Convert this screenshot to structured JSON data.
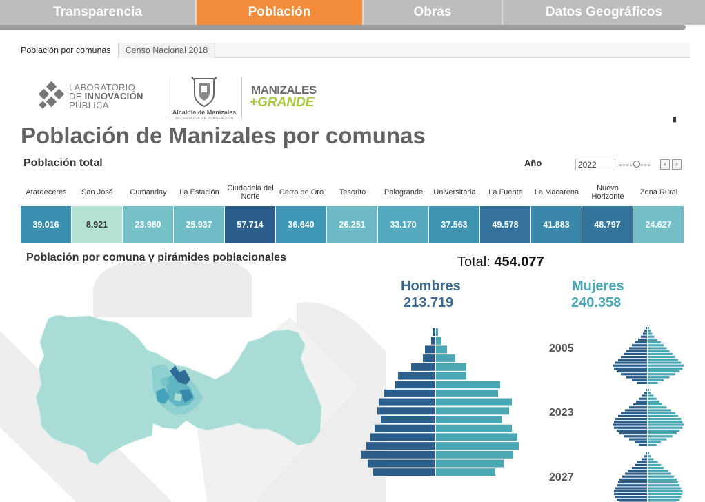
{
  "nav": {
    "tabs": [
      {
        "label": "Transparencia",
        "active": false
      },
      {
        "label": "Población",
        "active": true
      },
      {
        "label": "Obras",
        "active": false
      },
      {
        "label": "Datos Geográficos",
        "active": false
      }
    ]
  },
  "subtabs": [
    {
      "label": "Población por comunas",
      "active": true
    },
    {
      "label": "Censo Nacional 2018",
      "active": false
    }
  ],
  "logos": {
    "lab_line1": "LABORATORIO",
    "lab_line2_de": "DE ",
    "lab_line2_b": "INNOVACIÓN",
    "lab_line3": "PÚBLICA",
    "alcaldia": "Alcaldía de Manizales",
    "alcaldia_sub": "SECRETARÍA DE PLANEACIÓN",
    "mz_line1": "MANIZALES",
    "mz_line2": "+GRANDE"
  },
  "page_title": "Población de Manizales por comunas",
  "total_section_label": "Población total",
  "year_control": {
    "label": "Año",
    "value": "2022",
    "prev": "‹",
    "next": "›"
  },
  "comunas": [
    {
      "name": "Atardeceres",
      "value": "39.016",
      "color": "#3b8fae"
    },
    {
      "name": "San José",
      "value": "8.921",
      "color": "#b6e2d6",
      "dark_text": true
    },
    {
      "name": "Cumanday",
      "value": "23.980",
      "color": "#76c0c8"
    },
    {
      "name": "La Estación",
      "value": "25.937",
      "color": "#70bcc6"
    },
    {
      "name": "Ciudadela del Norte",
      "value": "57.714",
      "color": "#2b5e8a"
    },
    {
      "name": "Cerro de Oro",
      "value": "36.640",
      "color": "#3d96b3"
    },
    {
      "name": "Tesorito",
      "value": "26.251",
      "color": "#6cb9c5"
    },
    {
      "name": "Palogrande",
      "value": "33.170",
      "color": "#55a9be"
    },
    {
      "name": "Universitaria",
      "value": "37.563",
      "color": "#3f93b1"
    },
    {
      "name": "La Fuente",
      "value": "49.578",
      "color": "#34729b"
    },
    {
      "name": "La Macarena",
      "value": "41.883",
      "color": "#3a86a9"
    },
    {
      "name": "Nuevo Horizonte",
      "value": "48.797",
      "color": "#34749c"
    },
    {
      "name": "Zona Rural",
      "value": "24.627",
      "color": "#74bec8"
    }
  ],
  "section_title": "Población por comuna y pirámides poblacionales",
  "grand_total": {
    "label": "Total: ",
    "value": "454.077"
  },
  "hombres": {
    "label": "Hombres",
    "value": "213.719",
    "color": "#2b5e8a"
  },
  "mujeres": {
    "label": "Mujeres",
    "value": "240.358",
    "color": "#4aa8b4"
  },
  "mini_pyramids": [
    {
      "year": "2005"
    },
    {
      "year": "2023"
    },
    {
      "year": "2027"
    }
  ],
  "chart_data": {
    "type": "bar",
    "orientation": "horizontal-pyramid",
    "series": [
      {
        "name": "Hombres",
        "values": [
          0.4,
          0.6,
          1.5,
          1.8,
          3.5,
          5.4,
          5.8,
          7.4,
          8.2,
          8.4,
          7.9,
          8.8,
          9.4,
          10.0,
          10.8,
          9.8,
          9.0
        ]
      },
      {
        "name": "Mujeres",
        "values": [
          0.3,
          0.8,
          1.6,
          2.8,
          4.4,
          4.4,
          9.3,
          9.0,
          11.0,
          10.6,
          9.6,
          11.0,
          11.8,
          12.0,
          11.2,
          9.8,
          8.6
        ]
      }
    ]
  }
}
